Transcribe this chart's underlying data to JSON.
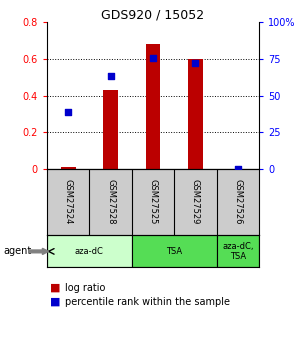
{
  "title": "GDS920 / 15052",
  "samples": [
    "GSM27524",
    "GSM27528",
    "GSM27525",
    "GSM27529",
    "GSM27526"
  ],
  "log_ratio": [
    0.01,
    0.43,
    0.68,
    0.6,
    0.0
  ],
  "percentile_rank": [
    0.385,
    0.635,
    0.755,
    0.72,
    0.0
  ],
  "ylim_left": [
    0,
    0.8
  ],
  "ylim_right": [
    0,
    1.0
  ],
  "yticks_left": [
    0,
    0.2,
    0.4,
    0.6,
    0.8
  ],
  "yticks_right": [
    0,
    0.25,
    0.5,
    0.75,
    1.0
  ],
  "ytick_labels_right": [
    "0",
    "25",
    "50",
    "75",
    "100%"
  ],
  "bar_color": "#bb0000",
  "scatter_color": "#0000cc",
  "agent_row_left_color": "#ccffcc",
  "agent_row_mid_color": "#55dd55",
  "agent_row_right_color": "#55dd55",
  "sample_row_color": "#cccccc",
  "legend_bar_label": "log ratio",
  "legend_scatter_label": "percentile rank within the sample",
  "agent_label": "agent"
}
